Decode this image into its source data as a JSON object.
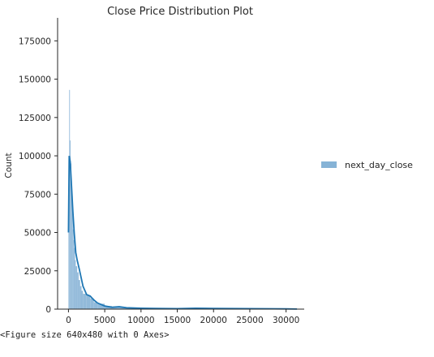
{
  "chart_data": {
    "type": "histogram",
    "title": "Close Price Distribution Plot",
    "xlabel": "",
    "ylabel": "Count",
    "xlim": [
      -1500,
      32500
    ],
    "ylim": [
      0,
      190000
    ],
    "xticks": [
      0,
      5000,
      10000,
      15000,
      20000,
      25000,
      30000
    ],
    "yticks": [
      0,
      25000,
      50000,
      75000,
      100000,
      125000,
      150000,
      175000
    ],
    "legend": {
      "placement": "right-outside",
      "entries": [
        "next_day_close"
      ]
    },
    "grid": false,
    "series": [
      {
        "name": "next_day_close",
        "color": "#1f77b4",
        "bar_color": "#86b3d6",
        "histogram": {
          "bins_x": [
            0,
            100,
            200,
            300,
            400,
            500,
            600,
            700,
            800,
            900,
            1000,
            1200,
            1400,
            1600,
            1800,
            2000,
            2500,
            3000,
            3500,
            4000,
            5000,
            6000,
            7000,
            8000,
            10000,
            12000,
            15000,
            20000,
            25000,
            30000
          ],
          "counts": [
            60000,
            143000,
            110000,
            95000,
            80000,
            65000,
            52000,
            45000,
            40000,
            32000,
            28000,
            24000,
            19000,
            15000,
            12000,
            10000,
            9000,
            7000,
            4500,
            3500,
            2000,
            1500,
            1200,
            800,
            600,
            400,
            300,
            200,
            100,
            50
          ]
        },
        "kde": {
          "x": [
            0,
            100,
            250,
            400,
            600,
            800,
            1000,
            1200,
            1500,
            2000,
            2500,
            3000,
            3500,
            4000,
            5000,
            6000,
            7000,
            8000,
            10000,
            12000,
            15000,
            17500,
            20000,
            25000,
            30000,
            31500
          ],
          "y": [
            50000,
            100000,
            96000,
            82000,
            64000,
            49000,
            37000,
            32000,
            26000,
            15000,
            9500,
            8500,
            6000,
            4000,
            2000,
            1200,
            1600,
            900,
            600,
            400,
            300,
            600,
            500,
            300,
            150,
            50
          ]
        }
      }
    ]
  },
  "output_caption": "<Figure size 640x480 with 0 Axes>"
}
